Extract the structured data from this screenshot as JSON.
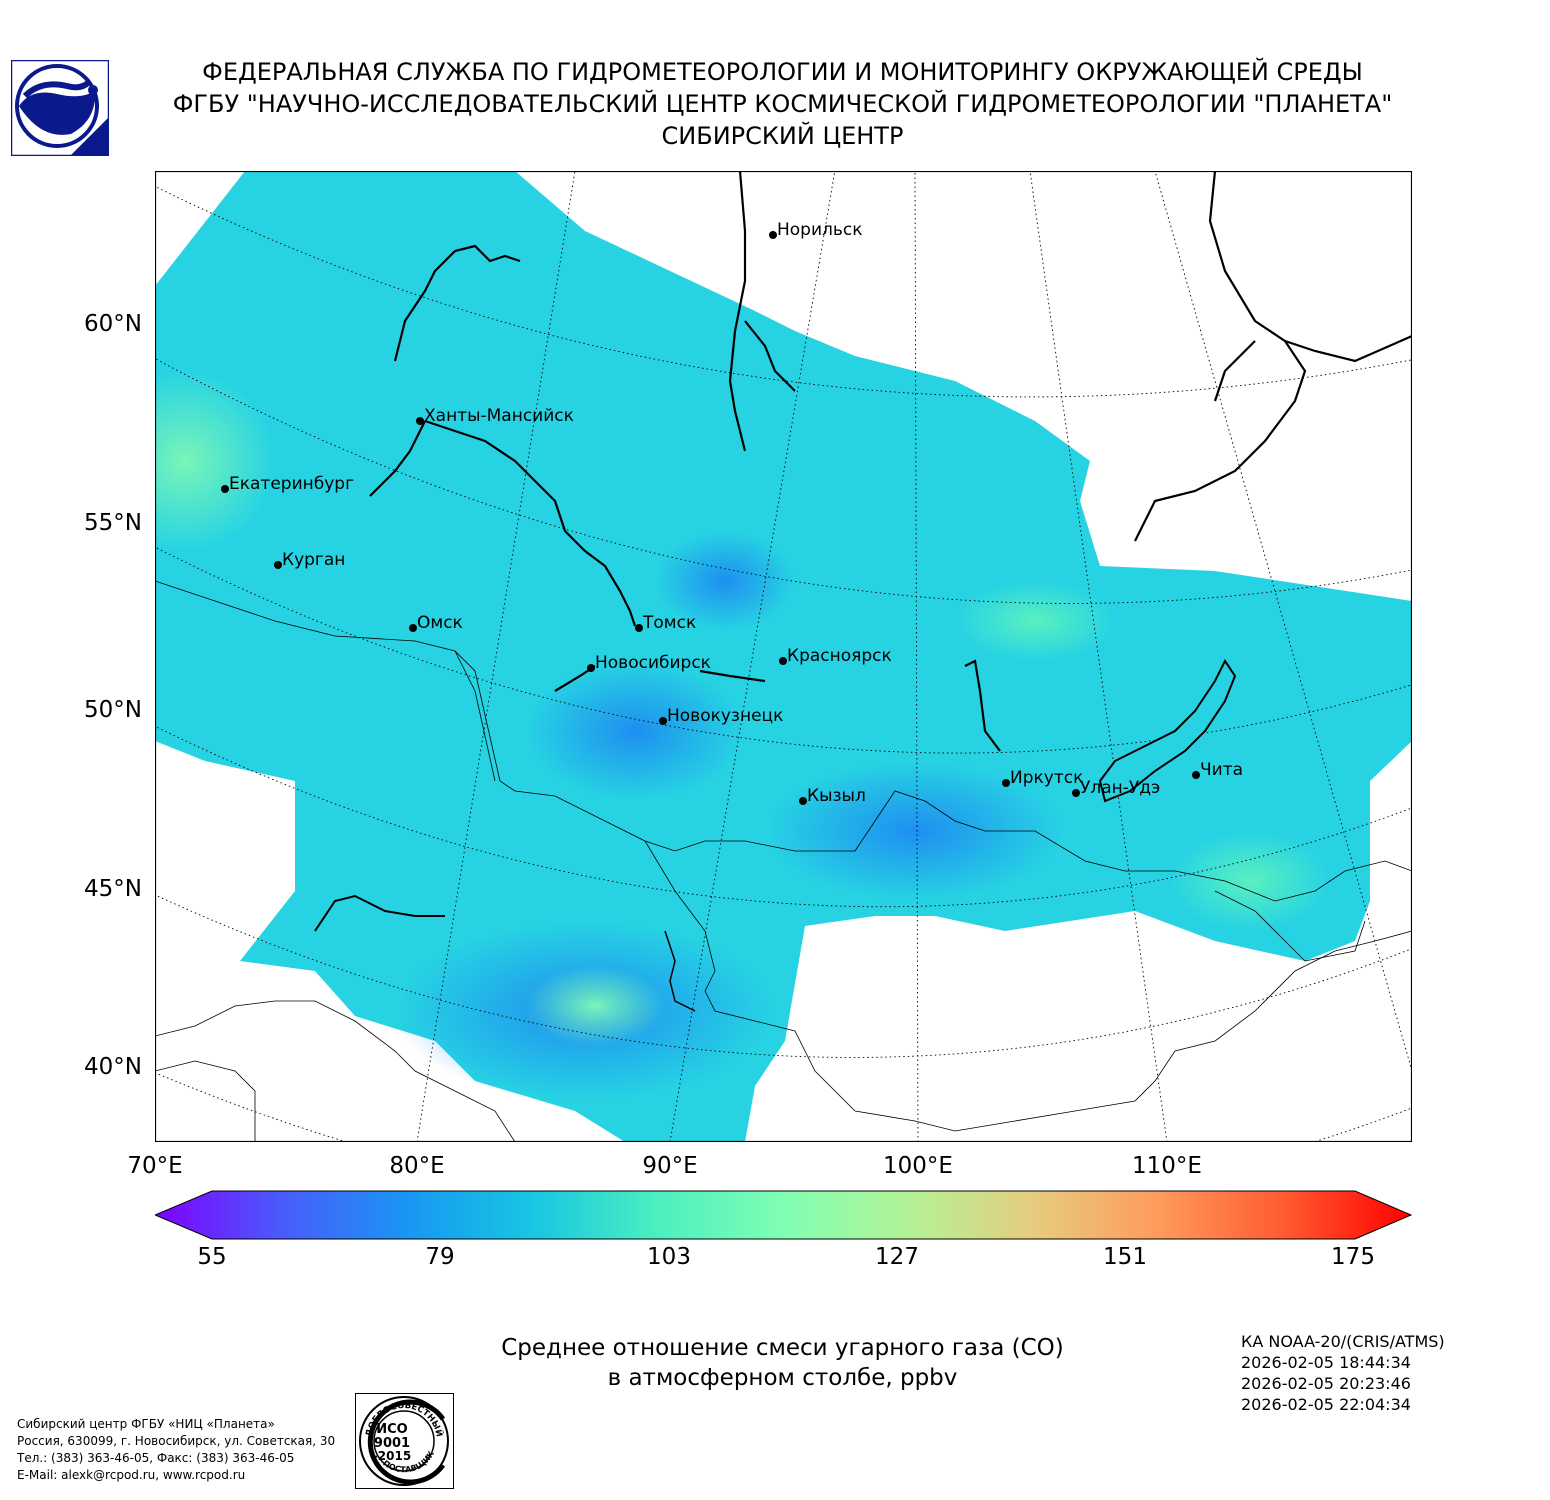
{
  "header": {
    "line1": "ФЕДЕРАЛЬНАЯ СЛУЖБА ПО ГИДРОМЕТЕОРОЛОГИИ И МОНИТОРИНГУ ОКРУЖАЮЩЕЙ СРЕДЫ",
    "line2": "ФГБУ \"НАУЧНО-ИССЛЕДОВАТЕЛЬСКИЙ ЦЕНТР КОСМИЧЕСКОЙ ГИДРОМЕТЕОРОЛОГИИ \"ПЛАНЕТА\"",
    "line3": "СИБИРСКИЙ ЦЕНТР"
  },
  "map": {
    "lat_labels": [
      "60°N",
      "55°N",
      "50°N",
      "45°N",
      "40°N"
    ],
    "lon_labels": [
      "70°E",
      "80°E",
      "90°E",
      "100°E",
      "110°E"
    ],
    "cities": [
      "Норильск",
      "Ханты-Мансийск",
      "Екатеринбург",
      "Курган",
      "Омск",
      "Томск",
      "Новосибирск",
      "Красноярск",
      "Новокузнецк",
      "Иркутск",
      "Улан-Удэ",
      "Чита",
      "Кызыл"
    ]
  },
  "colorbar": {
    "ticks": [
      "55",
      "79",
      "103",
      "127",
      "151",
      "175"
    ],
    "colors": [
      "#7f00ff",
      "#4a5bfb",
      "#1996f3",
      "#17c6e2",
      "#4cefc0",
      "#80feb3",
      "#b4f296",
      "#e6cc7e",
      "#ff9a5c",
      "#ff5a30",
      "#ff0000"
    ]
  },
  "caption": {
    "line1": "Среднее отношение смеси угарного газа (CO)",
    "line2": "в атмосферном столбе, ppbv"
  },
  "satellite": {
    "name": "КА NOAA-20/(CRIS/ATMS)",
    "times": [
      "2026-02-05 18:44:34",
      "2026-02-05 20:23:46",
      "2026-02-05 22:04:34"
    ]
  },
  "footer": {
    "line1": "Сибирский центр ФГБУ «НИЦ «Планета»",
    "line2": "Россия, 630099, г. Новосибирск, ул. Советская, 30",
    "line3": "Тел.: (383) 363-46-05, Факс: (383) 363-46-05",
    "line4": "E-Mail: alexk@rcpod.ru, www.rcpod.ru"
  },
  "iso_badge": {
    "top_text": "ДОБРОСОВЕСТНЫЙ",
    "line1": "ИСО",
    "line2": "9001",
    "line3": "-2015",
    "bottom_text": "ПОСТАВЩИК"
  }
}
